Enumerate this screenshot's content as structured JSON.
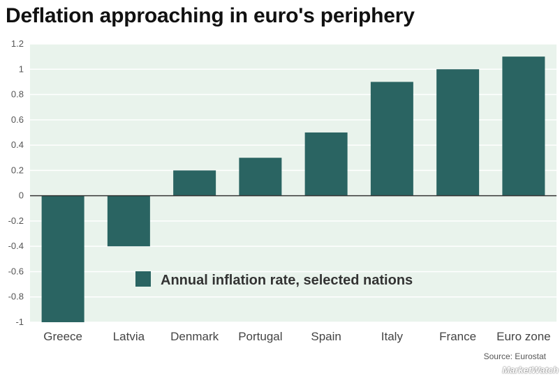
{
  "chart_data": {
    "type": "bar",
    "title": "Deflation approaching in euro's periphery",
    "categories": [
      "Greece",
      "Latvia",
      "Denmark",
      "Portugal",
      "Spain",
      "Italy",
      "France",
      "Euro zone"
    ],
    "series": [
      {
        "name": "Annual inflation rate, selected nations",
        "values": [
          -1.1,
          -0.4,
          0.2,
          0.3,
          0.5,
          0.9,
          1.0,
          1.1
        ]
      }
    ],
    "ylim": [
      -1,
      1.2
    ],
    "yticks": [
      1.2,
      1,
      0.8,
      0.6,
      0.4,
      0.2,
      0,
      -0.2,
      -0.4,
      -0.6,
      -0.8,
      -1
    ],
    "ytick_labels": [
      "1.2",
      "1",
      "0.8",
      "0.6",
      "0.4",
      "0.2",
      "0",
      "-0.2",
      "-0.4",
      "-0.6",
      "-0.8",
      "-1"
    ],
    "xlabel": "",
    "ylabel": "",
    "grid": true,
    "legend_position": "inside-lower-center",
    "colors": {
      "bar": "#2a6462",
      "plot_background": "#e9f3ec",
      "gridline": "#ffffff",
      "zero_line": "#333333"
    }
  },
  "footer": {
    "source": "Source: Eurostat",
    "brand": "MarketWatch"
  }
}
